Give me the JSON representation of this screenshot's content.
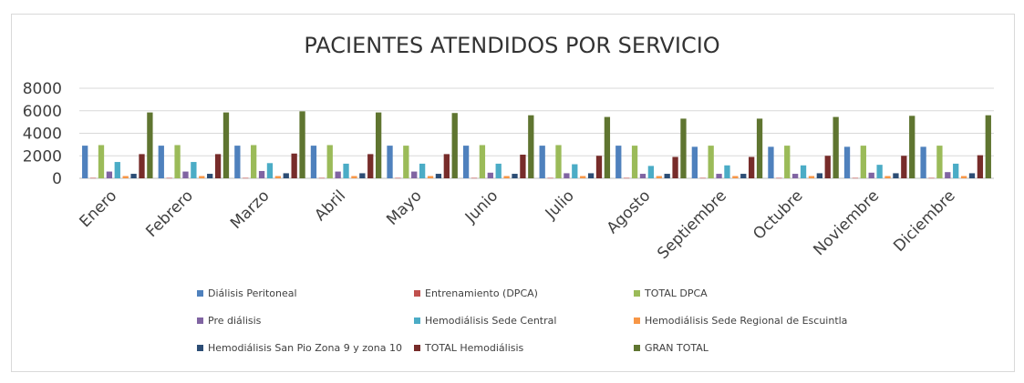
{
  "chart_data": {
    "type": "bar",
    "title": "PACIENTES ATENDIDOS POR SERVICIO",
    "xlabel": "",
    "ylabel": "",
    "ylim": [
      0,
      8000
    ],
    "yticks": [
      "0",
      "2000",
      "4000",
      "6000",
      "8000"
    ],
    "grid": true,
    "legend_position": "bottom",
    "categories": [
      "Enero",
      "Febrero",
      "Marzo",
      "Abril",
      "Mayo",
      "Junio",
      "Julio",
      "Agosto",
      "Septiembre",
      "Octubre",
      "Noviembre",
      "Diciembre"
    ],
    "series": [
      {
        "name": "Diálisis Peritoneal",
        "color": "#4f81bd",
        "values": [
          2900,
          2900,
          2900,
          2900,
          2900,
          2900,
          2900,
          2900,
          2800,
          2800,
          2800,
          2800
        ]
      },
      {
        "name": "Entrenamiento  (DPCA)",
        "color": "#c0504d",
        "values": [
          40,
          40,
          40,
          40,
          40,
          40,
          40,
          40,
          40,
          40,
          40,
          40
        ]
      },
      {
        "name": "TOTAL DPCA",
        "color": "#9bbb59",
        "values": [
          2950,
          2950,
          2950,
          2950,
          2900,
          2950,
          2950,
          2900,
          2900,
          2900,
          2900,
          2900
        ]
      },
      {
        "name": "Pre diálisis",
        "color": "#8064a2",
        "values": [
          600,
          600,
          650,
          600,
          600,
          500,
          450,
          400,
          400,
          400,
          500,
          550
        ]
      },
      {
        "name": "Hemodiálisis Sede Central",
        "color": "#4bacc6",
        "values": [
          1450,
          1450,
          1350,
          1300,
          1300,
          1300,
          1250,
          1100,
          1150,
          1150,
          1200,
          1300
        ]
      },
      {
        "name": "Hemodiálisis Sede Regional de Escuintla",
        "color": "#f79646",
        "values": [
          200,
          200,
          200,
          200,
          200,
          200,
          200,
          200,
          200,
          200,
          200,
          200
        ]
      },
      {
        "name": "Hemodiálisis San Pio Zona 9 y zona 10",
        "color": "#2c4d75",
        "values": [
          400,
          400,
          450,
          450,
          400,
          400,
          450,
          400,
          400,
          450,
          450,
          450
        ]
      },
      {
        "name": "TOTAL Hemodiálisis",
        "color": "#772c2a",
        "values": [
          2150,
          2150,
          2200,
          2150,
          2150,
          2100,
          2000,
          1900,
          1900,
          2000,
          2000,
          2050
        ]
      },
      {
        "name": "GRAN TOTAL",
        "color": "#5f7530",
        "values": [
          5850,
          5850,
          5950,
          5850,
          5800,
          5600,
          5450,
          5300,
          5300,
          5450,
          5550,
          5600
        ]
      }
    ]
  }
}
